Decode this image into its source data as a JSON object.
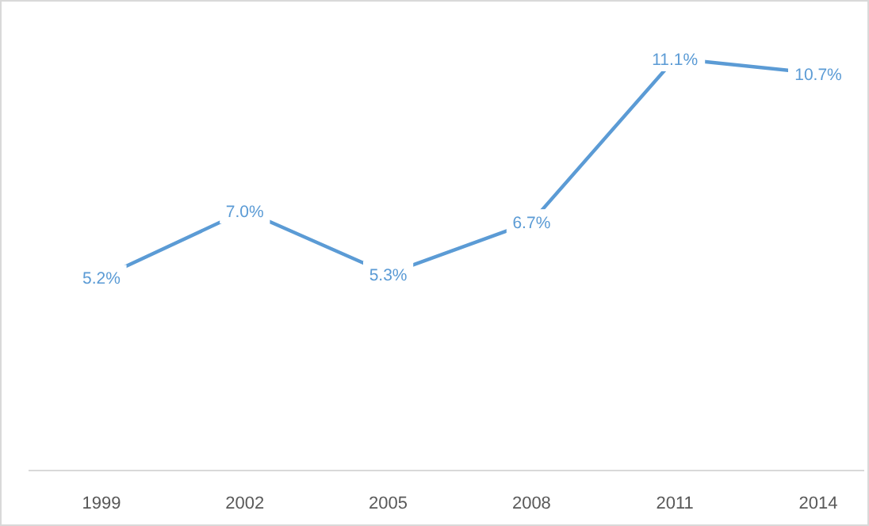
{
  "chart_data": {
    "type": "line",
    "categories": [
      "1999",
      "2002",
      "2005",
      "2008",
      "2011",
      "2014"
    ],
    "values": [
      5.2,
      7.0,
      5.3,
      6.7,
      11.1,
      10.7
    ],
    "value_labels": [
      "5.2%",
      "7.0%",
      "5.3%",
      "6.7%",
      "11.1%",
      "10.7%"
    ],
    "color": "#5b9bd5"
  }
}
